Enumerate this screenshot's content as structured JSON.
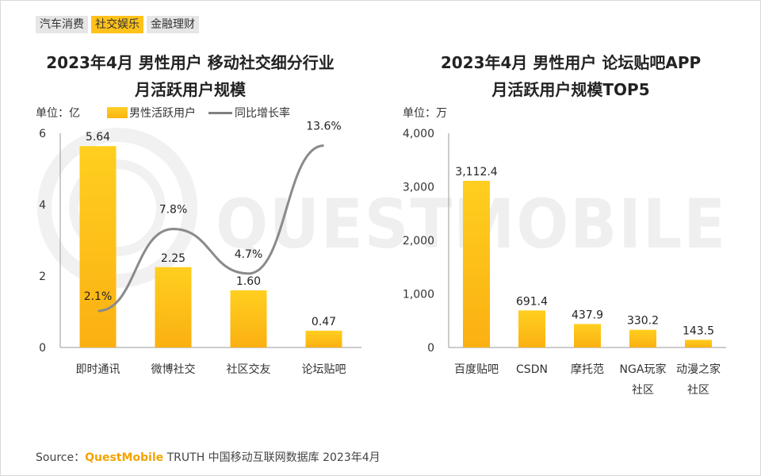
{
  "tabs": [
    {
      "label": "汽车消费",
      "active": false
    },
    {
      "label": "社交娱乐",
      "active": true
    },
    {
      "label": "金融理财",
      "active": false
    }
  ],
  "watermark": "QUESTMOBILE",
  "source": {
    "prefix": "Source：",
    "brand": "QuestMobile",
    "rest": "TRUTH 中国移动互联网数据库 2023年4月"
  },
  "chart_data": [
    {
      "type": "bar",
      "title_line1": "2023年4月 男性用户 移动社交细分行业",
      "title_line2": "月活跃用户规模",
      "unit_label": "单位：亿",
      "legend": {
        "bar": "男性活跃用户",
        "line": "同比增长率"
      },
      "categories": [
        "即时通讯",
        "微博社交",
        "社区交友",
        "论坛贴吧"
      ],
      "values": [
        5.64,
        2.25,
        1.6,
        0.47
      ],
      "value_labels": [
        "5.64",
        "2.25",
        "1.60",
        "0.47"
      ],
      "ylim": [
        0,
        6
      ],
      "yticks": [
        0,
        2,
        4,
        6
      ],
      "ytick_labels": [
        "0",
        "2",
        "4",
        "6"
      ],
      "line_series": {
        "name": "同比增长率",
        "values": [
          2.1,
          7.8,
          4.7,
          13.6
        ],
        "labels": [
          "2.1%",
          "7.8%",
          "4.7%",
          "13.6%"
        ]
      }
    },
    {
      "type": "bar",
      "title_line1": "2023年4月 男性用户 论坛贴吧APP",
      "title_line2": "月活跃用户规模TOP5",
      "unit_label": "单位：万",
      "categories": [
        [
          "百度贴吧"
        ],
        [
          "CSDN"
        ],
        [
          "摩托范"
        ],
        [
          "NGA玩家",
          "社区"
        ],
        [
          "动漫之家",
          "社区"
        ]
      ],
      "values": [
        3112.4,
        691.4,
        437.9,
        330.2,
        143.5
      ],
      "value_labels": [
        "3,112.4",
        "691.4",
        "437.9",
        "330.2",
        "143.5"
      ],
      "ylim": [
        0,
        4000
      ],
      "yticks": [
        0,
        1000,
        2000,
        3000,
        4000
      ],
      "ytick_labels": [
        "0",
        "1,000",
        "2,000",
        "3,000",
        "4,000"
      ]
    }
  ]
}
